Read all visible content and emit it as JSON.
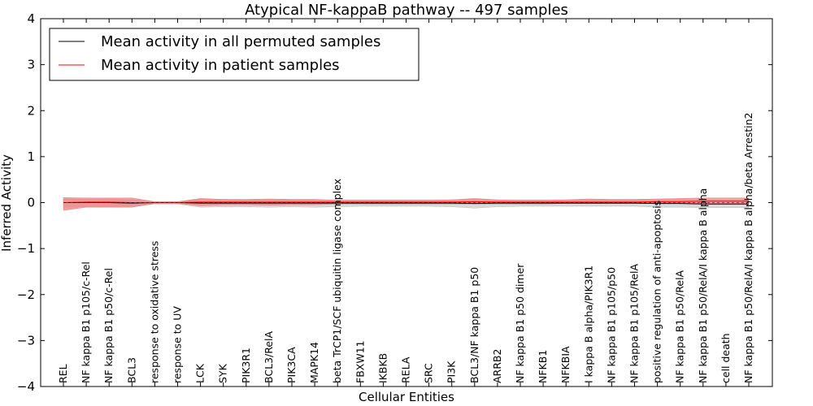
{
  "chart_data": {
    "type": "line",
    "title": "Atypical NF-kappaB pathway -- 497 samples",
    "xlabel": "Cellular Entities",
    "ylabel": "Inferred Activity",
    "ylim": [
      -4,
      4
    ],
    "yticks": [
      -4,
      -3,
      -2,
      -1,
      0,
      1,
      2,
      3,
      4
    ],
    "ytick_labels": [
      "−4",
      "−3",
      "−2",
      "−1",
      "0",
      "1",
      "2",
      "3",
      "4"
    ],
    "legend_position": "top-left",
    "categories": [
      "REL",
      "NF kappa B1 p105/c-Rel",
      "NF kappa B1 p50/c-Rel",
      "BCL3",
      "response to oxidative stress",
      "response to UV",
      "LCK",
      "SYK",
      "PIK3R1",
      "BCL3/RelA",
      "PIK3CA",
      "MAPK14",
      "beta TrCP1/SCF ubiquitin ligase complex",
      "FBXW11",
      "IKBKB",
      "RELA",
      "SRC",
      "PI3K",
      "BCL3/NF kappa B1 p50",
      "ARRB2",
      "NF kappa B1 p50 dimer",
      "NFKB1",
      "NFKBIA",
      "I kappa B alpha/PIK3R1",
      "NF kappa B1 p105/p50",
      "NF kappa B1 p105/RelA",
      "positive regulation of anti-apoptosis",
      "NF kappa B1 p50/RelA",
      "NF kappa B1 p50/RelA/I kappa B alpha",
      "cell death",
      "NF kappa B1 p50/RelA/I kappa B alpha/beta Arrestin2"
    ],
    "series": [
      {
        "name": "Mean activity in all permuted samples",
        "color": "#000000",
        "band_color": "#bbbbbb",
        "values": [
          0,
          0,
          0,
          -0.01,
          0,
          0,
          -0.01,
          -0.01,
          -0.01,
          -0.01,
          -0.01,
          -0.01,
          -0.01,
          -0.01,
          -0.01,
          -0.01,
          -0.01,
          -0.01,
          -0.02,
          -0.01,
          -0.01,
          -0.01,
          -0.01,
          -0.01,
          -0.01,
          -0.01,
          -0.02,
          -0.02,
          -0.03,
          -0.03,
          -0.03
        ],
        "lower": [
          -0.1,
          -0.09,
          -0.09,
          -0.09,
          -0.03,
          -0.03,
          -0.1,
          -0.09,
          -0.09,
          -0.1,
          -0.09,
          -0.1,
          -0.09,
          -0.08,
          -0.08,
          -0.08,
          -0.08,
          -0.09,
          -0.12,
          -0.09,
          -0.08,
          -0.08,
          -0.08,
          -0.08,
          -0.08,
          -0.08,
          -0.1,
          -0.1,
          -0.11,
          -0.11,
          -0.11
        ],
        "upper": [
          0.08,
          0.07,
          0.07,
          0.06,
          0.02,
          0.02,
          0.07,
          0.07,
          0.06,
          0.06,
          0.06,
          0.06,
          0.06,
          0.06,
          0.06,
          0.06,
          0.06,
          0.06,
          0.07,
          0.06,
          0.06,
          0.06,
          0.06,
          0.06,
          0.06,
          0.06,
          0.06,
          0.06,
          0.05,
          0.05,
          0.05
        ]
      },
      {
        "name": "Mean activity in patient samples",
        "color": "#ff0000",
        "band_color": "#f08080",
        "values": [
          0,
          0.01,
          0.01,
          0,
          0,
          0,
          0.01,
          0.01,
          0.01,
          0.01,
          0.01,
          0.01,
          0.01,
          0.01,
          0.01,
          0.01,
          0.01,
          0.01,
          0.02,
          0.01,
          0.01,
          0.01,
          0.01,
          0.01,
          0.01,
          0.01,
          0.02,
          0.02,
          0.03,
          0.03,
          0.03
        ],
        "lower": [
          -0.17,
          -0.1,
          -0.1,
          -0.1,
          -0.02,
          -0.02,
          -0.07,
          -0.05,
          -0.05,
          -0.06,
          -0.05,
          -0.05,
          -0.03,
          -0.03,
          -0.03,
          -0.03,
          -0.03,
          -0.03,
          -0.03,
          -0.03,
          -0.03,
          -0.03,
          -0.02,
          -0.02,
          -0.02,
          -0.02,
          -0.02,
          -0.02,
          -0.02,
          -0.02,
          -0.02
        ],
        "upper": [
          0.11,
          0.1,
          0.1,
          0.1,
          0.02,
          0.02,
          0.09,
          0.07,
          0.07,
          0.08,
          0.07,
          0.07,
          0.05,
          0.05,
          0.05,
          0.05,
          0.05,
          0.06,
          0.09,
          0.06,
          0.05,
          0.05,
          0.06,
          0.08,
          0.07,
          0.07,
          0.08,
          0.09,
          0.1,
          0.1,
          0.1
        ]
      }
    ]
  }
}
